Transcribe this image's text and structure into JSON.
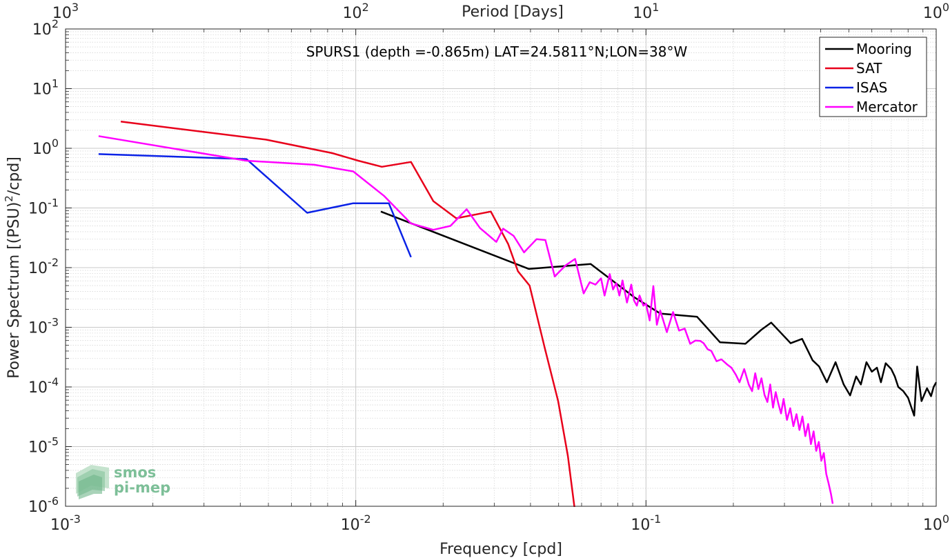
{
  "chart_data": {
    "type": "line",
    "title": "SPURS1 (depth =-0.865m) LAT=24.5811°N;LON=38°W",
    "xlabel": "Frequency [cpd]",
    "ylabel": "Power Spectrum [(PSU)",
    "ylabel_sup": "2",
    "ylabel_tail": "/cpd]",
    "x2label": "Period [Days]",
    "x_scale": "log",
    "y_scale": "log",
    "xlim": [
      0.001,
      1
    ],
    "ylim": [
      1e-06,
      100
    ],
    "grid": true,
    "legend_position": "top-right",
    "x_ticks": [
      {
        "value": 0.001,
        "base": "10",
        "exp": "-3"
      },
      {
        "value": 0.01,
        "base": "10",
        "exp": "-2"
      },
      {
        "value": 0.1,
        "base": "10",
        "exp": "-1"
      },
      {
        "value": 1,
        "base": "10",
        "exp": "0"
      }
    ],
    "y_ticks": [
      {
        "value": 1e-06,
        "base": "10",
        "exp": "-6"
      },
      {
        "value": 1e-05,
        "base": "10",
        "exp": "-5"
      },
      {
        "value": 0.0001,
        "base": "10",
        "exp": "-4"
      },
      {
        "value": 0.001,
        "base": "10",
        "exp": "-3"
      },
      {
        "value": 0.01,
        "base": "10",
        "exp": "-2"
      },
      {
        "value": 0.1,
        "base": "10",
        "exp": "-1"
      },
      {
        "value": 1,
        "base": "10",
        "exp": "0"
      },
      {
        "value": 10,
        "base": "10",
        "exp": "1"
      },
      {
        "value": 100,
        "base": "10",
        "exp": "2"
      }
    ],
    "x2_ticks": [
      {
        "value": 0.001,
        "base": "10",
        "exp": "3"
      },
      {
        "value": 0.01,
        "base": "10",
        "exp": "2"
      },
      {
        "value": 0.1,
        "base": "10",
        "exp": "1"
      },
      {
        "value": 1,
        "base": "10",
        "exp": "0"
      }
    ],
    "series": [
      {
        "name": "Mooring",
        "color": "#000000",
        "x": [
          0.0122,
          0.0395,
          0.0645,
          0.091,
          0.112,
          0.15,
          0.18,
          0.22,
          0.25,
          0.27,
          0.315,
          0.345,
          0.375,
          0.395,
          0.42,
          0.45,
          0.48,
          0.505,
          0.53,
          0.55,
          0.575,
          0.6,
          0.625,
          0.645,
          0.67,
          0.7,
          0.72,
          0.74,
          0.77,
          0.8,
          0.84,
          0.86,
          0.89,
          0.93,
          0.96,
          0.98,
          1.0
        ],
        "y": [
          0.087,
          0.0095,
          0.0115,
          0.0032,
          0.0017,
          0.0015,
          0.00056,
          0.00053,
          0.00091,
          0.0012,
          0.00054,
          0.00064,
          0.00028,
          0.00022,
          0.00012,
          0.00026,
          0.00011,
          7.2e-05,
          0.00015,
          0.00011,
          0.00026,
          0.00018,
          0.00021,
          0.00012,
          0.00025,
          0.0002,
          0.00015,
          0.0001,
          8.5e-05,
          6.6e-05,
          3.3e-05,
          0.00022,
          5.8e-05,
          9.5e-05,
          7e-05,
          0.0001,
          0.00012
        ]
      },
      {
        "name": "SAT",
        "color": "#e8001a",
        "x": [
          0.00155,
          0.0049,
          0.0083,
          0.0102,
          0.0123,
          0.0155,
          0.0185,
          0.0222,
          0.0292,
          0.0335,
          0.0362,
          0.0397,
          0.0448,
          0.0498,
          0.0538,
          0.0568
        ],
        "y": [
          2.8,
          1.4,
          0.83,
          0.62,
          0.49,
          0.59,
          0.13,
          0.067,
          0.087,
          0.025,
          0.0087,
          0.005,
          0.00045,
          5.8e-05,
          7e-06,
          8e-07
        ]
      },
      {
        "name": "ISAS",
        "color": "#0a22e6",
        "x": [
          0.0013,
          0.0042,
          0.0068,
          0.0098,
          0.013,
          0.0155
        ],
        "y": [
          0.8,
          0.66,
          0.083,
          0.12,
          0.12,
          0.015
        ]
      },
      {
        "name": "Mercator",
        "color": "#ff00ff",
        "x": [
          0.0013,
          0.0042,
          0.0072,
          0.0098,
          0.0125,
          0.0155,
          0.0185,
          0.0212,
          0.0241,
          0.0268,
          0.0305,
          0.0322,
          0.035,
          0.038,
          0.042,
          0.045,
          0.0485,
          0.05,
          0.053,
          0.057,
          0.061,
          0.064,
          0.067,
          0.07,
          0.072,
          0.075,
          0.077,
          0.079,
          0.081,
          0.083,
          0.086,
          0.089,
          0.091,
          0.093,
          0.095,
          0.098,
          0.1,
          0.103,
          0.106,
          0.109,
          0.112,
          0.118,
          0.124,
          0.13,
          0.136,
          0.142,
          0.148,
          0.154,
          0.158,
          0.163,
          0.168,
          0.175,
          0.182,
          0.19,
          0.197,
          0.204,
          0.21,
          0.218,
          0.226,
          0.232,
          0.238,
          0.244,
          0.25,
          0.256,
          0.262,
          0.268,
          0.274,
          0.28,
          0.286,
          0.292,
          0.298,
          0.306,
          0.314,
          0.322,
          0.33,
          0.338,
          0.346,
          0.354,
          0.362,
          0.37,
          0.378,
          0.386,
          0.394,
          0.402,
          0.41,
          0.418,
          0.426,
          0.434,
          0.44
        ],
        "y": [
          1.6,
          0.62,
          0.53,
          0.41,
          0.16,
          0.055,
          0.043,
          0.05,
          0.095,
          0.046,
          0.027,
          0.045,
          0.034,
          0.018,
          0.03,
          0.029,
          0.0071,
          0.0083,
          0.011,
          0.014,
          0.0037,
          0.0057,
          0.0052,
          0.0066,
          0.0034,
          0.0078,
          0.0043,
          0.0055,
          0.0034,
          0.0061,
          0.0026,
          0.0052,
          0.0028,
          0.0023,
          0.0034,
          0.0023,
          0.0025,
          0.0013,
          0.0049,
          0.0011,
          0.0019,
          0.00083,
          0.0018,
          0.00088,
          0.00095,
          0.00053,
          0.0006,
          0.00059,
          0.00054,
          0.00043,
          0.0004,
          0.00027,
          0.00029,
          0.00024,
          0.00021,
          0.00016,
          0.00012,
          0.0002,
          0.00011,
          8.5e-05,
          0.00017,
          9.2e-05,
          0.00014,
          7.4e-05,
          5.6e-05,
          0.00011,
          4.5e-05,
          8.2e-05,
          5.2e-05,
          3.6e-05,
          6.3e-05,
          2.8e-05,
          4.4e-05,
          2.2e-05,
          3.5e-05,
          1.9e-05,
          3.2e-05,
          1.5e-05,
          2.4e-05,
          1.1e-05,
          1.8e-05,
          8.5e-06,
          1.2e-05,
          5.8e-06,
          7.8e-06,
          3.5e-06,
          2.4e-06,
          1.6e-06,
          1.1e-06
        ]
      }
    ]
  },
  "logo": {
    "line1": "smos",
    "line2": "pi-mep",
    "color": "#7dbf98"
  }
}
